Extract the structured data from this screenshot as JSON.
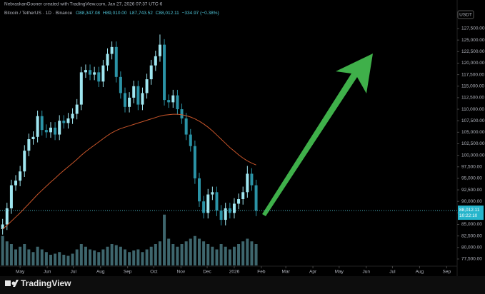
{
  "chart_data": {
    "type": "candlestick",
    "header": "NebraskanGooner created with TradingView.com, Jan 27, 2026 07:37 UTC-6",
    "symbol": "Bitcoin / TetherUS · 1D · Binance",
    "ohlc_legend": [
      "O88,347.08",
      "H89,010.00",
      "L87,743.52",
      "C88,012.11",
      "−334.97 (−0.38%)"
    ],
    "currency": "USDT",
    "brand": "TradingView",
    "colors": {
      "up": "#9fe6f0",
      "down": "#2b93a6",
      "volume": "#4d7f88",
      "background": "#000000"
    },
    "x": [
      -20,
      -15,
      -10,
      -5,
      0,
      5,
      10,
      15,
      20,
      25,
      30,
      35,
      40,
      45,
      50,
      55,
      60,
      65,
      70,
      75,
      80,
      85,
      90,
      95,
      100,
      105,
      110,
      115,
      120,
      125,
      130,
      135,
      140,
      145,
      150,
      155,
      160,
      165,
      170,
      175,
      180,
      185,
      190,
      195,
      200,
      205,
      210,
      215,
      220,
      225,
      230,
      235,
      240,
      245,
      250,
      255,
      260,
      265,
      270
    ],
    "open": [
      84000,
      85000,
      88500,
      93500,
      94500,
      96500,
      101000,
      103500,
      104000,
      108500,
      105500,
      105000,
      106000,
      104500,
      107500,
      107000,
      108000,
      109000,
      111000,
      118000,
      118500,
      117500,
      118000,
      116000,
      119500,
      122000,
      123500,
      117000,
      113500,
      110500,
      112500,
      115000,
      111000,
      113500,
      116500,
      119500,
      121500,
      124000,
      112000,
      111500,
      113000,
      110000,
      108000,
      104500,
      102000,
      95000,
      90000,
      87500,
      91500,
      92000,
      88000,
      86000,
      88500,
      87500,
      89500,
      90500,
      92000,
      96000,
      93500
    ],
    "high": [
      86200,
      89700,
      94700,
      95700,
      97700,
      102200,
      104700,
      105200,
      109700,
      109700,
      106700,
      107200,
      107200,
      108700,
      108700,
      109200,
      110200,
      112200,
      119200,
      119700,
      119700,
      119200,
      119200,
      120700,
      123200,
      124700,
      124700,
      118200,
      114700,
      113700,
      116200,
      116200,
      114700,
      117700,
      120700,
      122700,
      126200,
      125200,
      113200,
      114200,
      114200,
      111200,
      109200,
      105700,
      103200,
      96200,
      91200,
      92700,
      93200,
      93200,
      89200,
      89700,
      89700,
      90700,
      91700,
      93200,
      97700,
      97200,
      94700
    ],
    "low": [
      82800,
      83800,
      87300,
      92300,
      93300,
      95300,
      99800,
      102300,
      102800,
      104300,
      103800,
      103800,
      103300,
      103300,
      105800,
      105800,
      106800,
      107800,
      109800,
      116800,
      116300,
      116300,
      114800,
      114800,
      118300,
      120800,
      115800,
      112300,
      109300,
      109300,
      111300,
      109800,
      109800,
      112300,
      115300,
      118300,
      120300,
      110800,
      110300,
      110300,
      108800,
      106800,
      103300,
      100800,
      93800,
      88800,
      86300,
      86300,
      90300,
      86800,
      84800,
      84800,
      86300,
      86300,
      88300,
      89300,
      90800,
      92300,
      86800
    ],
    "close": [
      85000,
      88500,
      93500,
      94500,
      96500,
      101000,
      103500,
      104000,
      108500,
      105500,
      105000,
      106000,
      104500,
      107500,
      107000,
      108000,
      109000,
      111000,
      118000,
      118500,
      117500,
      118000,
      116000,
      119500,
      122000,
      123500,
      117000,
      113500,
      110500,
      112500,
      115000,
      111000,
      113500,
      116500,
      119500,
      121500,
      124000,
      112000,
      111500,
      113000,
      110000,
      108000,
      104500,
      102000,
      95000,
      90000,
      87500,
      91500,
      92000,
      88000,
      86000,
      88500,
      87500,
      89500,
      90500,
      92000,
      96000,
      93500,
      88000
    ],
    "volume": [
      55,
      45,
      40,
      30,
      35,
      40,
      30,
      25,
      35,
      30,
      25,
      20,
      22,
      25,
      20,
      18,
      22,
      30,
      40,
      35,
      30,
      28,
      25,
      30,
      35,
      40,
      38,
      35,
      30,
      25,
      28,
      30,
      25,
      30,
      35,
      40,
      45,
      95,
      50,
      40,
      35,
      40,
      45,
      50,
      55,
      50,
      45,
      40,
      35,
      30,
      40,
      35,
      30,
      35,
      40,
      45,
      50,
      45,
      40
    ],
    "volume_lim": [
      0,
      100
    ],
    "ma": {
      "color": "#c8552a",
      "values": [
        84000,
        84800,
        85700,
        86600,
        87500,
        88500,
        89500,
        90500,
        91500,
        92400,
        93300,
        94200,
        95000,
        95900,
        96700,
        97500,
        98300,
        99100,
        100000,
        100800,
        101500,
        102200,
        102900,
        103600,
        104300,
        104900,
        105400,
        105800,
        106100,
        106400,
        106700,
        107000,
        107300,
        107600,
        107900,
        108200,
        108500,
        108700,
        108800,
        108900,
        108900,
        108800,
        108600,
        108300,
        107900,
        107400,
        106800,
        106100,
        105300,
        104400,
        103500,
        102600,
        101700,
        100900,
        100100,
        99400,
        98800,
        98300,
        97900
      ]
    },
    "last_price": {
      "value": 88012.11,
      "label": "88,012.11"
    },
    "countdown": "10:22:10",
    "xlim": [
      -23,
      500
    ],
    "ylim": [
      76100,
      129050
    ],
    "xticks": [
      {
        "value": 0,
        "label": "May"
      },
      {
        "value": 31,
        "label": "Jun"
      },
      {
        "value": 61,
        "label": "Jul"
      },
      {
        "value": 92,
        "label": "Aug"
      },
      {
        "value": 123,
        "label": "Sep"
      },
      {
        "value": 153,
        "label": "Oct"
      },
      {
        "value": 184,
        "label": "Nov"
      },
      {
        "value": 214,
        "label": "Dec"
      },
      {
        "value": 245,
        "label": "2026"
      },
      {
        "value": 276,
        "label": "Feb"
      },
      {
        "value": 304,
        "label": "Mar"
      },
      {
        "value": 335,
        "label": "Apr"
      },
      {
        "value": 365,
        "label": "May"
      },
      {
        "value": 396,
        "label": "Jun"
      },
      {
        "value": 426,
        "label": "Jul"
      },
      {
        "value": 457,
        "label": "Aug"
      },
      {
        "value": 488,
        "label": "Sep"
      }
    ],
    "yticks": [
      {
        "value": 77500,
        "label": "77,500.00"
      },
      {
        "value": 80000,
        "label": "80,000.00"
      },
      {
        "value": 82500,
        "label": "82,500.00"
      },
      {
        "value": 85000,
        "label": "85,000.00"
      },
      {
        "value": 87500,
        "label": "87,500.00"
      },
      {
        "value": 90000,
        "label": "90,000.00"
      },
      {
        "value": 92500,
        "label": "92,500.00"
      },
      {
        "value": 95000,
        "label": "95,000.00"
      },
      {
        "value": 97500,
        "label": "97,500.00"
      },
      {
        "value": 100000,
        "label": "100,000.00"
      },
      {
        "value": 102500,
        "label": "102,500.00"
      },
      {
        "value": 105000,
        "label": "105,000.00"
      },
      {
        "value": 107500,
        "label": "107,500.00"
      },
      {
        "value": 110000,
        "label": "110,000.00"
      },
      {
        "value": 112500,
        "label": "112,500.00"
      },
      {
        "value": 115000,
        "label": "115,000.00"
      },
      {
        "value": 117500,
        "label": "117,500.00"
      },
      {
        "value": 120000,
        "label": "120,000.00"
      },
      {
        "value": 122500,
        "label": "122,500.00"
      },
      {
        "value": 125000,
        "label": "125,000.00"
      },
      {
        "value": 127500,
        "label": "127,500.00"
      }
    ]
  }
}
